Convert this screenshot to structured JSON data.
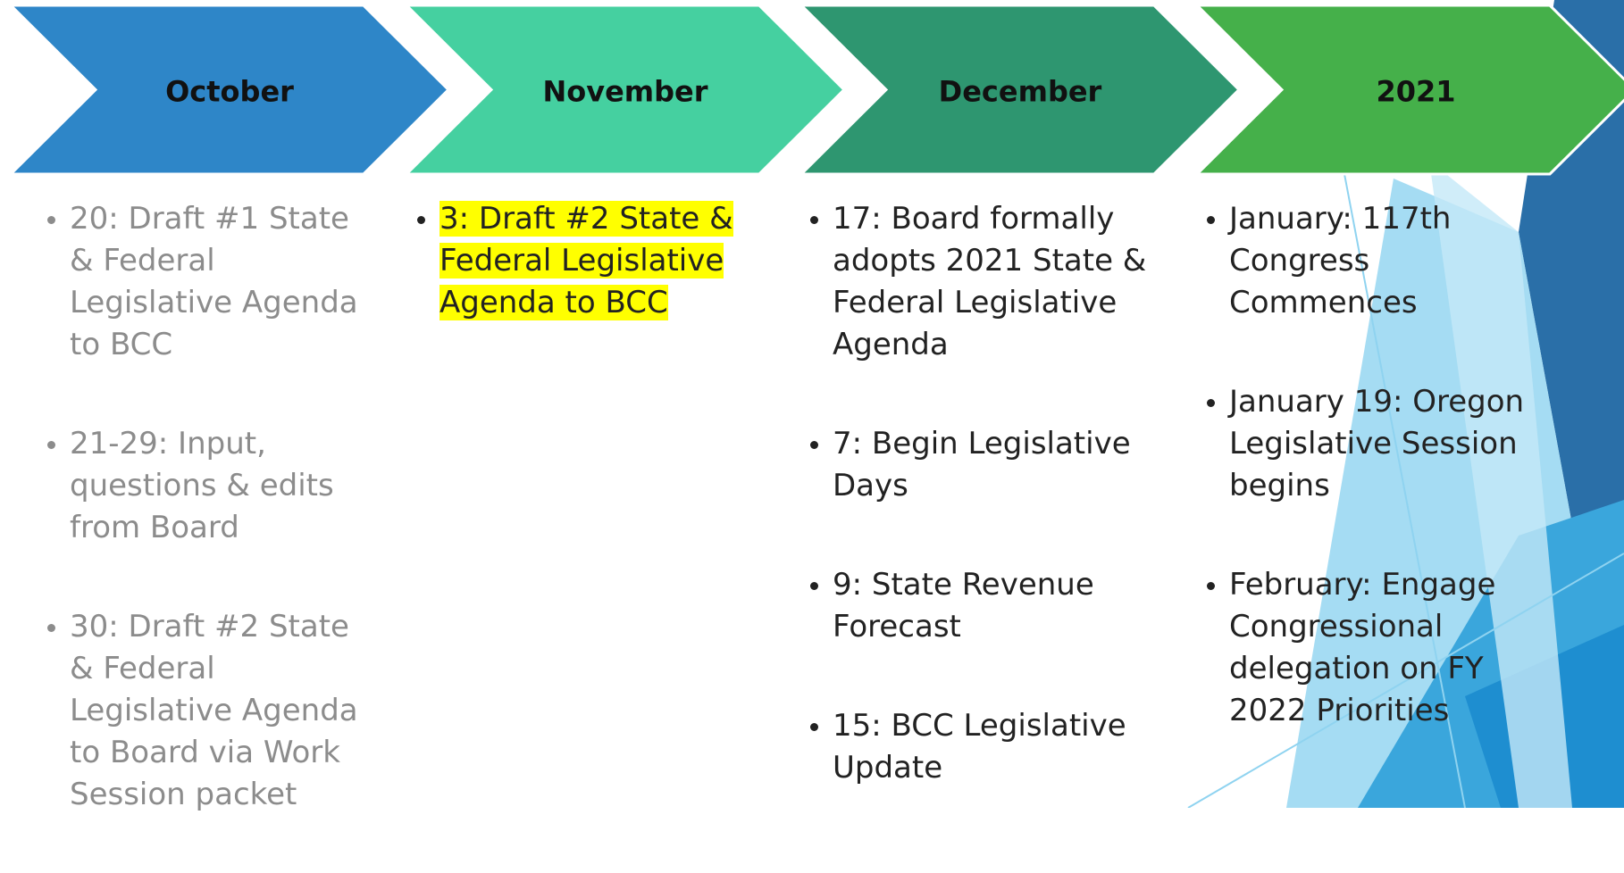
{
  "columns": [
    {
      "heading": "October",
      "items": [
        "20: Draft #1 State & Federal Legislative  Agenda to BCC",
        "21-29: Input, questions & edits from Board",
        "30: Draft #2 State & Federal Legislative  Agenda to Board via Work Session packet"
      ]
    },
    {
      "heading": "November",
      "items": [
        "3: Draft #2 State & Federal Legislative Agenda to BCC"
      ]
    },
    {
      "heading": "December",
      "items": [
        "17: Board formally adopts 2021 State & Federal Legislative Agenda",
        "7: Begin Legislative Days",
        "9: State Revenue Forecast",
        "15: BCC Legislative Update"
      ]
    },
    {
      "heading": "2021",
      "items": [
        "January: 117th Congress Commences",
        "January 19: Oregon Legislative Session begins",
        "February: Engage Congressional delegation on FY 2022 Priorities"
      ]
    }
  ]
}
